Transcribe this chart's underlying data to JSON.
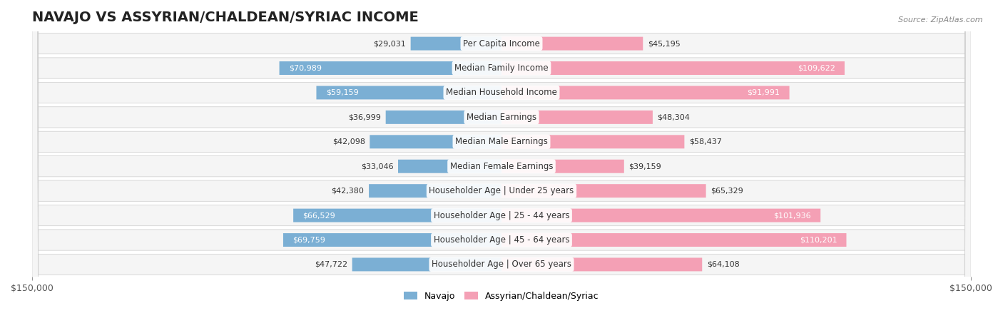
{
  "title": "NAVAJO VS ASSYRIAN/CHALDEAN/SYRIAC INCOME",
  "source": "Source: ZipAtlas.com",
  "categories": [
    "Per Capita Income",
    "Median Family Income",
    "Median Household Income",
    "Median Earnings",
    "Median Male Earnings",
    "Median Female Earnings",
    "Householder Age | Under 25 years",
    "Householder Age | 25 - 44 years",
    "Householder Age | 45 - 64 years",
    "Householder Age | Over 65 years"
  ],
  "navajo_values": [
    29031,
    70989,
    59159,
    36999,
    42098,
    33046,
    42380,
    66529,
    69759,
    47722
  ],
  "assyrian_values": [
    45195,
    109622,
    91991,
    48304,
    58437,
    39159,
    65329,
    101936,
    110201,
    64108
  ],
  "navajo_color": "#7bafd4",
  "navajo_color_dark": "#5a9fc7",
  "assyrian_color": "#f4a0b5",
  "assyrian_color_dark": "#e8758f",
  "max_value": 150000,
  "navajo_label": "Navajo",
  "assyrian_label": "Assyrian/Chaldean/Syriac",
  "background_color": "#ffffff",
  "row_bg_color": "#f0f0f0",
  "row_bg_alt": "#ffffff",
  "title_fontsize": 14,
  "label_fontsize": 8.5,
  "value_fontsize": 8,
  "legend_fontsize": 9
}
